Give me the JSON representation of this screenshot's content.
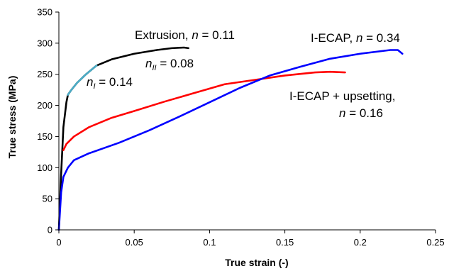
{
  "chart_data": {
    "type": "line",
    "title": "",
    "xlabel": "True strain (-)",
    "ylabel": "True stress (MPa)",
    "xlim": [
      0,
      0.25
    ],
    "ylim": [
      0,
      350
    ],
    "x_ticks": [
      "0",
      "0.05",
      "0.1",
      "0.15",
      "0.2",
      "0.25"
    ],
    "y_ticks": [
      "0",
      "50",
      "100",
      "150",
      "200",
      "250",
      "300",
      "350"
    ],
    "grid": false,
    "series": [
      {
        "color": "#000000",
        "points": [
          [
            0,
            0
          ],
          [
            0.0015,
            90
          ],
          [
            0.003,
            165
          ],
          [
            0.005,
            205
          ],
          [
            0.006,
            217
          ],
          [
            0.008,
            224
          ],
          [
            0.012,
            236
          ],
          [
            0.018,
            250
          ],
          [
            0.025,
            264
          ],
          [
            0.035,
            274
          ],
          [
            0.05,
            283
          ],
          [
            0.065,
            289
          ],
          [
            0.075,
            292
          ],
          [
            0.083,
            293
          ],
          [
            0.086,
            292
          ]
        ]
      },
      {
        "color": "#4bacc6",
        "points": [
          [
            0.006,
            217
          ],
          [
            0.008,
            224
          ],
          [
            0.012,
            236
          ],
          [
            0.018,
            250
          ],
          [
            0.025,
            264
          ]
        ]
      },
      {
        "color": "#ff0000",
        "points": [
          [
            0.003,
            128
          ],
          [
            0.005,
            138
          ],
          [
            0.01,
            150
          ],
          [
            0.02,
            165
          ],
          [
            0.035,
            180
          ],
          [
            0.05,
            191
          ],
          [
            0.07,
            206
          ],
          [
            0.09,
            220
          ],
          [
            0.11,
            234
          ],
          [
            0.13,
            241
          ],
          [
            0.15,
            248
          ],
          [
            0.17,
            253
          ],
          [
            0.18,
            254
          ],
          [
            0.19,
            253
          ]
        ]
      },
      {
        "color": "#0000ff",
        "points": [
          [
            0,
            0
          ],
          [
            0.0015,
            60
          ],
          [
            0.003,
            85
          ],
          [
            0.006,
            100
          ],
          [
            0.01,
            112
          ],
          [
            0.02,
            123
          ],
          [
            0.04,
            140
          ],
          [
            0.06,
            160
          ],
          [
            0.08,
            182
          ],
          [
            0.1,
            205
          ],
          [
            0.12,
            228
          ],
          [
            0.14,
            248
          ],
          [
            0.16,
            262
          ],
          [
            0.18,
            275
          ],
          [
            0.2,
            283
          ],
          [
            0.22,
            289
          ],
          [
            0.225,
            289
          ],
          [
            0.228,
            283
          ]
        ]
      }
    ],
    "annotations": [
      {
        "id": "extrusion",
        "text": "Extrusion, ",
        "italic": "n",
        "rest": " = 0.11"
      },
      {
        "id": "n2",
        "italic": "n",
        "sub": "II",
        "rest": " = 0.08"
      },
      {
        "id": "n1",
        "italic": "n",
        "sub": "I",
        "rest": " = 0.14"
      },
      {
        "id": "iecap",
        "text": "I-ECAP, ",
        "italic": "n",
        "rest": " = 0.34"
      },
      {
        "id": "ups1",
        "text": "I-ECAP + upsetting,"
      },
      {
        "id": "ups2",
        "italic": "n",
        "rest": " = 0.16"
      }
    ]
  }
}
